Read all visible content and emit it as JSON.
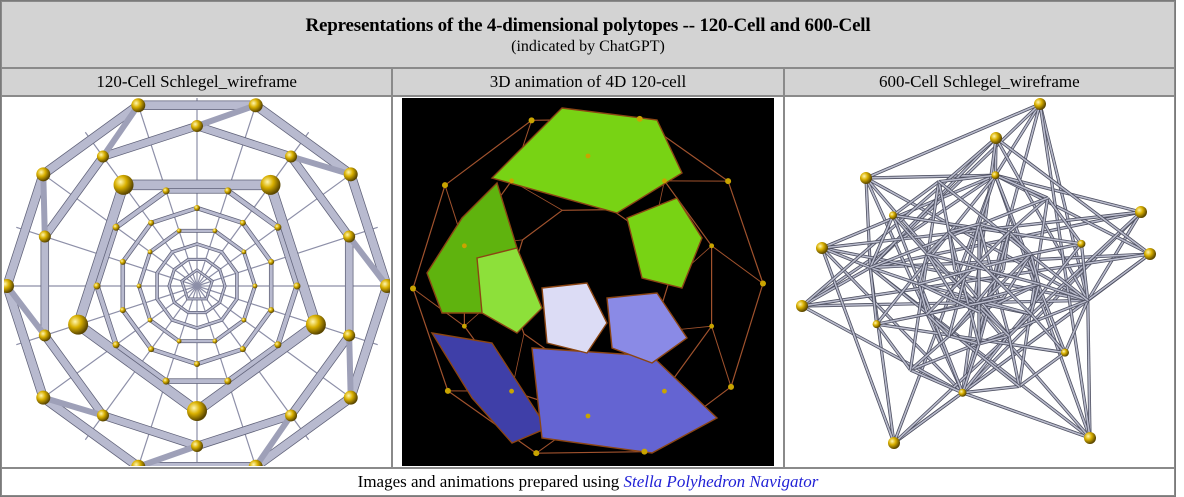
{
  "table": {
    "title": "Representations of the 4-dimensional polytopes -- 120-Cell and 600-Cell",
    "subtitle": "(indicated by ChatGPT)",
    "columns": [
      {
        "label": "120-Cell Schlegel_wireframe"
      },
      {
        "label": "3D animation of 4D 120-cell"
      },
      {
        "label": "600-Cell Schlegel_wireframe"
      }
    ],
    "footer_prefix": "Images and animations prepared using ",
    "footer_link": "Stella Polyhedron Navigator"
  },
  "colors": {
    "header_bg": "#d3d3d3",
    "link": "#1f1fd6",
    "animation_bg": "#000000",
    "green_cells": "#78d314",
    "blue_cells": "#6464d2",
    "vertex_gold": "#c9a400"
  }
}
